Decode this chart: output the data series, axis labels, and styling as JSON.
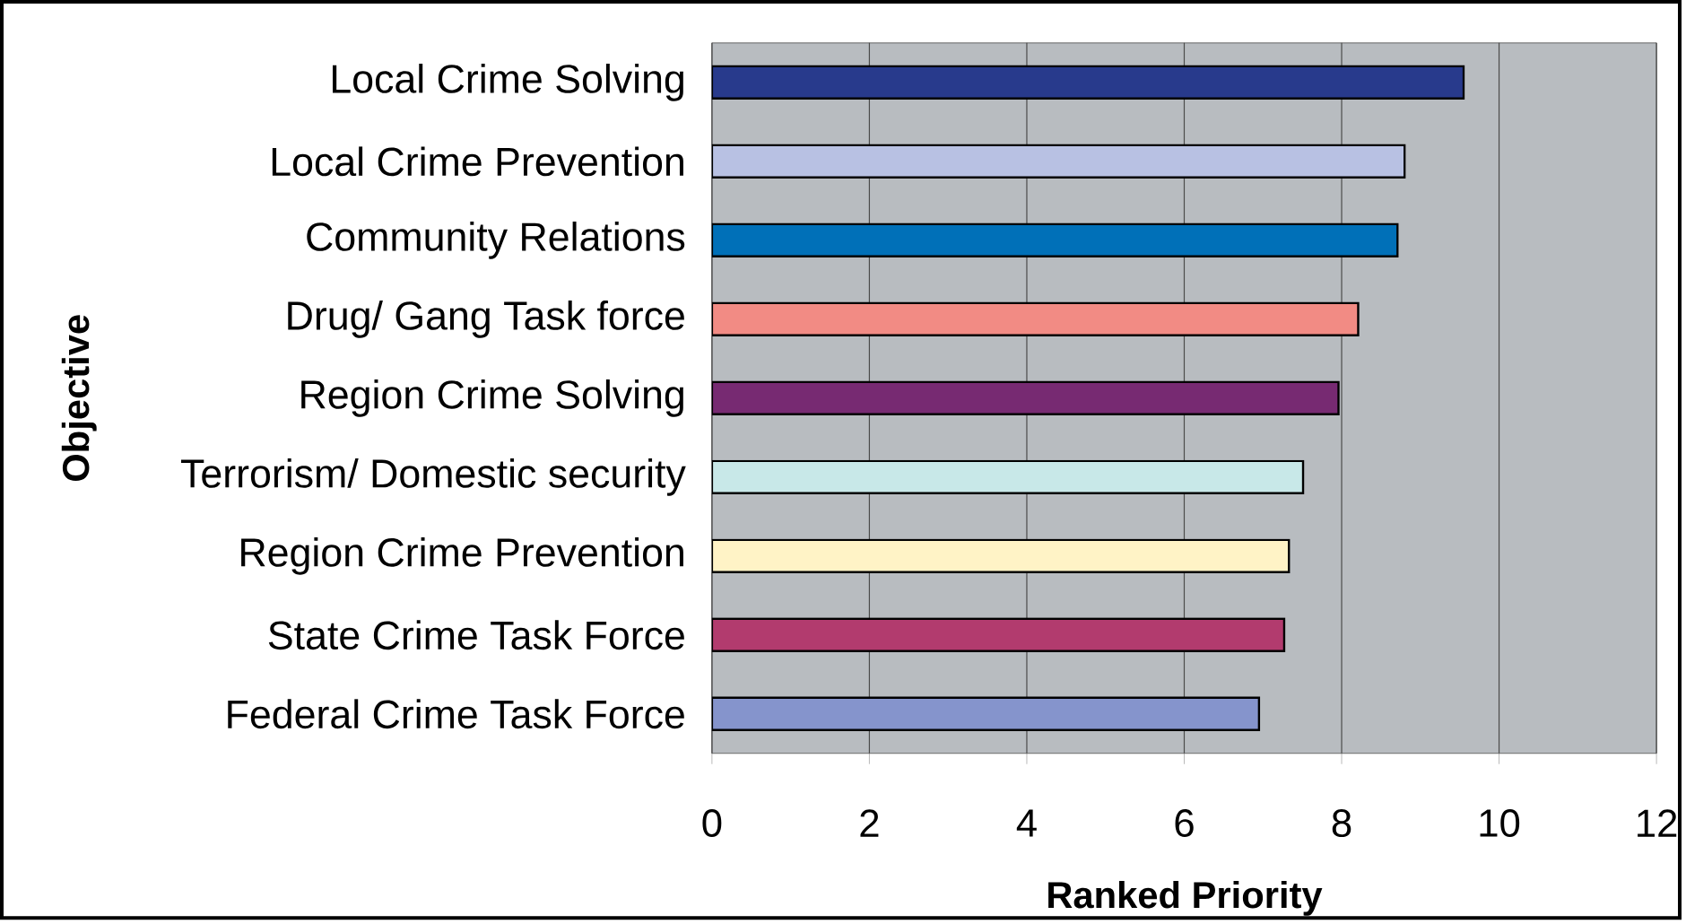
{
  "chart_data": {
    "type": "bar",
    "orientation": "horizontal",
    "categories": [
      "Local Crime Solving",
      "Local Crime Prevention",
      "Community Relations",
      "Drug/ Gang Task force",
      "Region Crime Solving",
      "Terrorism/ Domestic security",
      "Region Crime Prevention",
      "State Crime Task Force",
      "Federal Crime Task Force"
    ],
    "values": [
      9.55,
      8.8,
      8.71,
      8.21,
      7.96,
      7.51,
      7.33,
      7.27,
      6.95
    ],
    "colors": [
      "#283a8c",
      "#b8c1e3",
      "#0070b8",
      "#f28b84",
      "#772a72",
      "#c8e8e8",
      "#fff3c6",
      "#b23b6e",
      "#8594cc"
    ],
    "xlim": [
      0,
      12
    ],
    "xticks": [
      0,
      2,
      4,
      6,
      8,
      10,
      12
    ],
    "xlabel": "Ranked Priority",
    "ylabel": "Objective",
    "grid": "x"
  }
}
